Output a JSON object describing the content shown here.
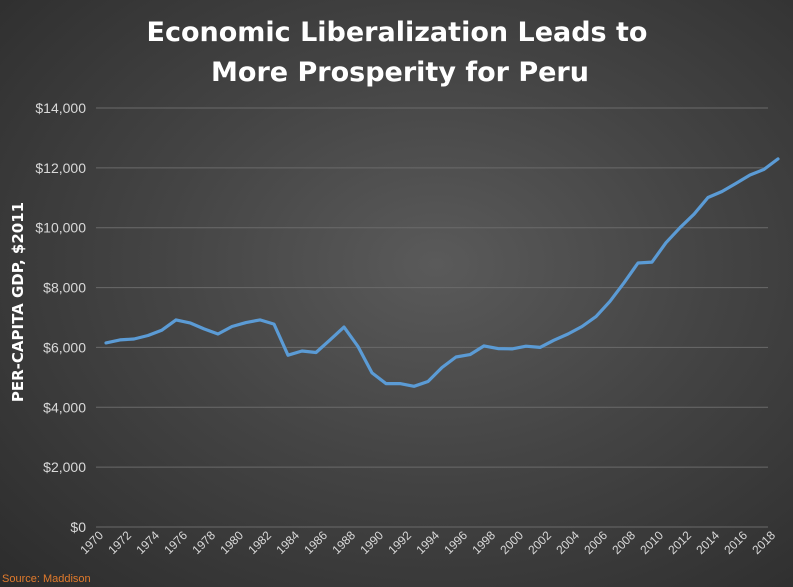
{
  "chart_data": {
    "type": "line",
    "title_lines": [
      "Economic Liberalization Leads to",
      "More Prosperity for Peru"
    ],
    "ylabel": "PER-CAPITA GDP, $2011",
    "xlabel": "",
    "ylim": [
      0,
      14000
    ],
    "yticks": [
      0,
      2000,
      4000,
      6000,
      8000,
      10000,
      12000,
      14000
    ],
    "ytick_labels": [
      "$0",
      "$2,000",
      "$4,000",
      "$6,000",
      "$8,000",
      "$10,000",
      "$12,000",
      "$14,000"
    ],
    "xtick_labels": [
      "1970",
      "1972",
      "1974",
      "1976",
      "1978",
      "1980",
      "1982",
      "1984",
      "1986",
      "1988",
      "1990",
      "1992",
      "1994",
      "1996",
      "1998",
      "2000",
      "2002",
      "2004",
      "2006",
      "2008",
      "2010",
      "2012",
      "2014",
      "2016",
      "2018"
    ],
    "grid": true,
    "line_color": "#5b9bd5",
    "source": "Source: Maddison",
    "series": [
      {
        "x": [
          1970,
          1971,
          1972,
          1973,
          1974,
          1975,
          1976,
          1977,
          1978,
          1979,
          1980,
          1981,
          1982,
          1983,
          1984,
          1985,
          1986,
          1987,
          1988,
          1989,
          1990,
          1991,
          1992,
          1993,
          1994,
          1995,
          1996,
          1997,
          1998,
          1999,
          2000,
          2001,
          2002,
          2003,
          2004,
          2005,
          2006,
          2007,
          2008,
          2009,
          2010,
          2011,
          2012,
          2013,
          2014,
          2015,
          2016,
          2017,
          2018
        ],
        "values": [
          6150,
          6250,
          6280,
          6400,
          6580,
          6920,
          6820,
          6620,
          6450,
          6700,
          6830,
          6920,
          6780,
          5740,
          5880,
          5830,
          6250,
          6680,
          6030,
          5150,
          4790,
          4790,
          4700,
          4860,
          5330,
          5680,
          5760,
          6050,
          5960,
          5950,
          6040,
          6000,
          6240,
          6450,
          6700,
          7030,
          7540,
          8160,
          8820,
          8850,
          9500,
          10000,
          10450,
          11010,
          11210,
          11480,
          11760,
          11950,
          12300
        ]
      }
    ]
  }
}
